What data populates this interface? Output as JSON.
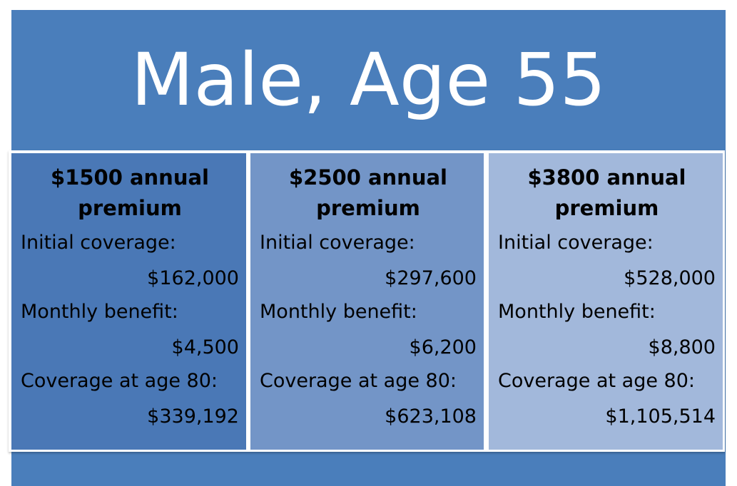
{
  "title": "Male, Age 55",
  "plans": [
    {
      "heading_line1": "$1500 annual",
      "heading_line2": "premium",
      "initial_coverage_label": "Initial coverage:",
      "initial_coverage_value": "$162,000",
      "monthly_benefit_label": "Monthly benefit:",
      "monthly_benefit_value": "$4,500",
      "coverage_at_80_label": "Coverage at age 80:",
      "coverage_at_80_value": "$339,192"
    },
    {
      "heading_line1": "$2500 annual",
      "heading_line2": "premium",
      "initial_coverage_label": "Initial coverage:",
      "initial_coverage_value": "$297,600",
      "monthly_benefit_label": "Monthly benefit:",
      "monthly_benefit_value": "$6,200",
      "coverage_at_80_label": "Coverage at age 80:",
      "coverage_at_80_value": "$623,108"
    },
    {
      "heading_line1": "$3800 annual",
      "heading_line2": "premium",
      "initial_coverage_label": "Initial coverage:",
      "initial_coverage_value": "$528,000",
      "monthly_benefit_label": "Monthly benefit:",
      "monthly_benefit_value": "$8,800",
      "coverage_at_80_label": "Coverage at age 80:",
      "coverage_at_80_value": "$1,105,514"
    }
  ],
  "colors": {
    "background": "#4a7ebb",
    "column_1": "#4a78b6",
    "column_2": "#7395c7",
    "column_3": "#a2b8db",
    "title_text": "#ffffff"
  }
}
